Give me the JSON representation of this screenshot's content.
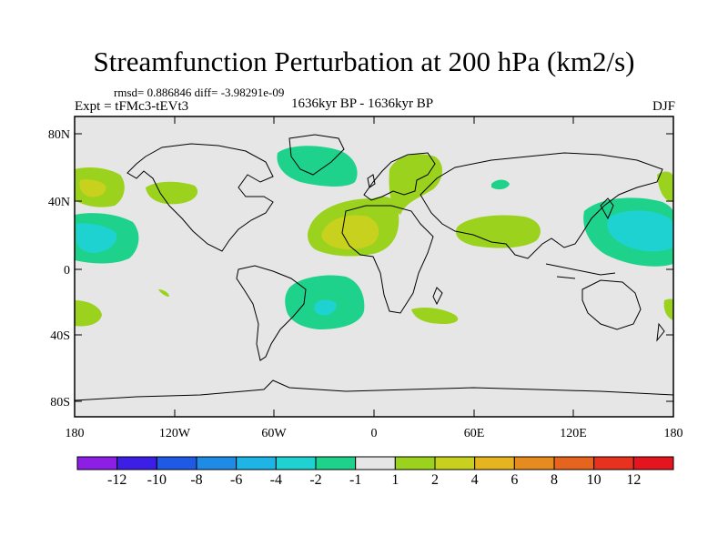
{
  "header": {
    "title": "Streamfunction Perturbation at 200 hPa (km2/s)",
    "stats": "rmsd= 0.886846 diff= -3.98291e-09",
    "experiment": "Expt = tFMc3-tEVt3",
    "period": "1636kyr BP - 1636kyr BP",
    "season": "DJF"
  },
  "map_axes": {
    "lat_labels": [
      "80N",
      "40N",
      "0",
      "40S",
      "80S"
    ],
    "lon_labels": [
      "180",
      "120W",
      "60W",
      "0",
      "60E",
      "120E",
      "180"
    ]
  },
  "colorbar": {
    "labels": [
      "-12",
      "-10",
      "-8",
      "-6",
      "-4",
      "-2",
      "-1",
      "1",
      "2",
      "4",
      "6",
      "8",
      "10",
      "12"
    ],
    "colors": [
      "#8c1ee6",
      "#3c1ee6",
      "#1e5ae6",
      "#1e8ce6",
      "#1eb4e6",
      "#1ed2d2",
      "#1ed28c",
      "#e6e6e6",
      "#9bd21e",
      "#c8d21e",
      "#e6b41e",
      "#e68c1e",
      "#e6641e",
      "#e6321e",
      "#e6141e"
    ]
  },
  "colors": {
    "background": "#e6e6e6",
    "neg_1": "#1ed28c",
    "neg_2": "#1ed2d2",
    "pos_1": "#9bd21e",
    "pos_2": "#c8d21e"
  }
}
